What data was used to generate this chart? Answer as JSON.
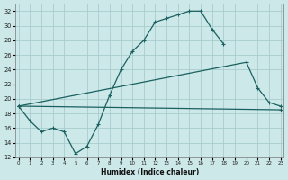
{
  "xlabel": "Humidex (Indice chaleur)",
  "bg_color": "#cce8e8",
  "grid_color": "#a8cccc",
  "line_color": "#1a6060",
  "xlim": [
    -0.3,
    23.3
  ],
  "ylim": [
    12,
    33
  ],
  "yticks": [
    12,
    14,
    16,
    18,
    20,
    22,
    24,
    26,
    28,
    30,
    32
  ],
  "xticks": [
    0,
    1,
    2,
    3,
    4,
    5,
    6,
    7,
    8,
    9,
    10,
    11,
    12,
    13,
    14,
    15,
    16,
    17,
    18,
    19,
    20,
    21,
    22,
    23
  ],
  "curve1_x": [
    0,
    1,
    2,
    3,
    4,
    5,
    6,
    7,
    8,
    9,
    10,
    11,
    12,
    13,
    14,
    15,
    16,
    17,
    18
  ],
  "curve1_y": [
    19,
    17,
    15.5,
    16,
    15.5,
    12.5,
    13.5,
    16.5,
    20.5,
    24,
    26.5,
    28,
    30.5,
    31,
    31.5,
    32,
    32,
    29.5,
    27.5
  ],
  "curve2_x": [
    0,
    20,
    21,
    22,
    23
  ],
  "curve2_y": [
    19,
    25,
    21.5,
    19.5,
    19
  ],
  "curve3_x": [
    0,
    23
  ],
  "curve3_y": [
    19,
    18.5
  ]
}
